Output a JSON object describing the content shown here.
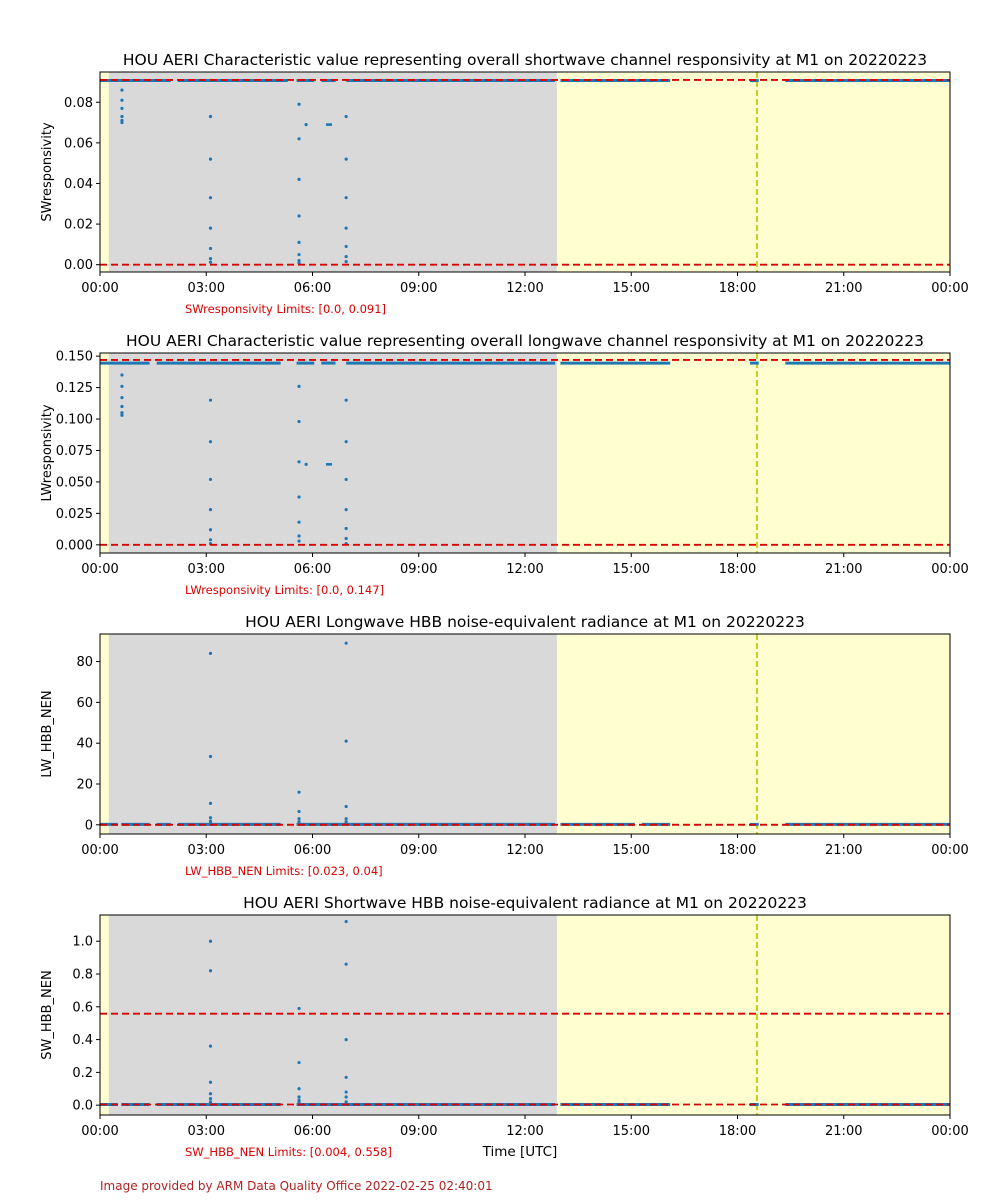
{
  "chart_data": [
    {
      "type": "scatter",
      "title": "HOU AERI Characteristic value representing overall shortwave channel responsivity at M1 on 20220223",
      "ylabel": "SWresponsivity",
      "xlabel": "",
      "xlim": [
        0,
        24
      ],
      "ylim": [
        -0.0036,
        0.0949
      ],
      "yticks": [
        0.0,
        0.02,
        0.04,
        0.06,
        0.08
      ],
      "ytick_labels": [
        "0.00",
        "0.02",
        "0.04",
        "0.06",
        "0.08"
      ],
      "limits_text": "SWresponsivity Limits: [0.0, 0.091]",
      "limits": [
        0.0,
        0.091
      ],
      "baseline": 0.0907,
      "gaps": [
        [
          2.0,
          2.2
        ],
        [
          5.3,
          5.55
        ],
        [
          6.05,
          6.25
        ],
        [
          6.65,
          6.95
        ],
        [
          12.85,
          13.0
        ],
        [
          16.1,
          18.35
        ],
        [
          18.6,
          19.35
        ]
      ],
      "scatter": [
        {
          "x": 0.62,
          "y": [
            0.086,
            0.081,
            0.077,
            0.073,
            0.071,
            0.07
          ]
        },
        {
          "x": 3.12,
          "y": [
            0.073,
            0.052,
            0.033,
            0.018,
            0.008,
            0.003,
            0.0012
          ]
        },
        {
          "x": 5.62,
          "y": [
            0.079,
            0.062,
            0.042,
            0.024,
            0.011,
            0.005,
            0.002,
            0.0008
          ]
        },
        {
          "x": 5.82,
          "y": [
            0.069
          ]
        },
        {
          "x": 6.95,
          "y": [
            0.073,
            0.052,
            0.033,
            0.018,
            0.009,
            0.004,
            0.0015
          ]
        }
      ],
      "segments": [
        {
          "x0": 6.38,
          "x1": 6.55,
          "y": 0.069
        }
      ]
    },
    {
      "type": "scatter",
      "title": "HOU AERI Characteristic value representing overall longwave channel responsivity at M1 on 20220223",
      "ylabel": "LWresponsivity",
      "xlabel": "",
      "xlim": [
        0,
        24
      ],
      "ylim": [
        -0.0065,
        0.1525
      ],
      "yticks": [
        0.0,
        0.025,
        0.05,
        0.075,
        0.1,
        0.125,
        0.15
      ],
      "ytick_labels": [
        "0.000",
        "0.025",
        "0.050",
        "0.075",
        "0.100",
        "0.125",
        "0.150"
      ],
      "limits_text": "LWresponsivity Limits: [0.0, 0.147]",
      "limits": [
        0.0,
        0.147
      ],
      "baseline": 0.1445,
      "gaps": [
        [
          1.4,
          1.6
        ],
        [
          5.1,
          5.55
        ],
        [
          6.05,
          6.25
        ],
        [
          6.65,
          6.95
        ],
        [
          12.85,
          13.0
        ],
        [
          16.1,
          18.35
        ],
        [
          18.6,
          19.35
        ]
      ],
      "scatter": [
        {
          "x": 0.62,
          "y": [
            0.135,
            0.126,
            0.117,
            0.11,
            0.105,
            0.103
          ]
        },
        {
          "x": 3.12,
          "y": [
            0.115,
            0.082,
            0.052,
            0.028,
            0.012,
            0.004,
            0.001
          ]
        },
        {
          "x": 5.62,
          "y": [
            0.126,
            0.098,
            0.066,
            0.038,
            0.018,
            0.007,
            0.003
          ]
        },
        {
          "x": 5.82,
          "y": [
            0.064
          ]
        },
        {
          "x": 6.95,
          "y": [
            0.115,
            0.082,
            0.052,
            0.028,
            0.013,
            0.005,
            0.001
          ]
        }
      ],
      "segments": [
        {
          "x0": 6.38,
          "x1": 6.55,
          "y": 0.064
        }
      ]
    },
    {
      "type": "scatter",
      "title": "HOU AERI Longwave HBB noise-equivalent radiance at M1 on 20220223",
      "ylabel": "LW_HBB_NEN",
      "xlabel": "",
      "xlim": [
        0,
        24
      ],
      "ylim": [
        -4.5,
        93.5
      ],
      "yticks": [
        0,
        20,
        40,
        60,
        80
      ],
      "ytick_labels": [
        "0",
        "20",
        "40",
        "60",
        "80"
      ],
      "limits_text": "LW_HBB_NEN Limits: [0.023, 0.04]",
      "limits": [
        0.023,
        0.04
      ],
      "baseline": 0.2,
      "gaps": [
        [
          0.5,
          0.6
        ],
        [
          1.4,
          1.6
        ],
        [
          2.0,
          2.2
        ],
        [
          5.1,
          5.55
        ],
        [
          12.85,
          13.0
        ],
        [
          15.1,
          15.3
        ],
        [
          16.1,
          18.35
        ],
        [
          18.6,
          19.35
        ]
      ],
      "scatter": [
        {
          "x": 3.12,
          "y": [
            84,
            33.5,
            10.5,
            3.5,
            1.8,
            0.9
          ]
        },
        {
          "x": 5.62,
          "y": [
            16,
            6.5,
            3,
            1.5,
            0.8
          ]
        },
        {
          "x": 6.95,
          "y": [
            89,
            41,
            9,
            3,
            1.5,
            0.8
          ]
        }
      ],
      "segments": []
    },
    {
      "type": "scatter",
      "title": "HOU AERI Shortwave HBB noise-equivalent radiance at M1 on 20220223",
      "ylabel": "SW_HBB_NEN",
      "xlabel": "Time [UTC]",
      "xlim": [
        0,
        24
      ],
      "ylim": [
        -0.06,
        1.16
      ],
      "yticks": [
        0.0,
        0.2,
        0.4,
        0.6,
        0.8,
        1.0
      ],
      "ytick_labels": [
        "0.0",
        "0.2",
        "0.4",
        "0.6",
        "0.8",
        "1.0"
      ],
      "limits_text": "SW_HBB_NEN Limits: [0.004, 0.558]",
      "limits": [
        0.004,
        0.558
      ],
      "baseline": 0.004,
      "gaps": [
        [
          0.5,
          0.6
        ],
        [
          1.4,
          1.6
        ],
        [
          5.1,
          5.55
        ],
        [
          12.85,
          13.0
        ],
        [
          16.1,
          18.35
        ],
        [
          18.6,
          19.35
        ]
      ],
      "scatter": [
        {
          "x": 3.12,
          "y": [
            1.0,
            0.82,
            0.36,
            0.14,
            0.07,
            0.04,
            0.02
          ]
        },
        {
          "x": 5.62,
          "y": [
            0.59,
            0.26,
            0.1,
            0.05,
            0.03,
            0.02
          ]
        },
        {
          "x": 6.95,
          "y": [
            1.12,
            0.86,
            0.4,
            0.17,
            0.08,
            0.05,
            0.02
          ]
        }
      ],
      "segments": []
    }
  ],
  "x_axis": {
    "tick_values": [
      0,
      3,
      6,
      9,
      12,
      15,
      18,
      21,
      24
    ],
    "tick_labels": [
      "00:00",
      "03:00",
      "06:00",
      "09:00",
      "12:00",
      "15:00",
      "18:00",
      "21:00",
      "00:00"
    ]
  },
  "shading": {
    "night_color": "#fefed0",
    "day_color": "#d9d9d9",
    "gray_span": [
      0.25,
      12.9
    ],
    "event_line_x": 18.55,
    "event_line_color": "#bfbf00"
  },
  "colors": {
    "points": "#1f77b4",
    "limit_line": "#dd0000",
    "limit_text": "#dd0000",
    "footer": "#b22222"
  },
  "footer": "Image provided by ARM Data Quality Office 2022-02-25 02:40:01"
}
